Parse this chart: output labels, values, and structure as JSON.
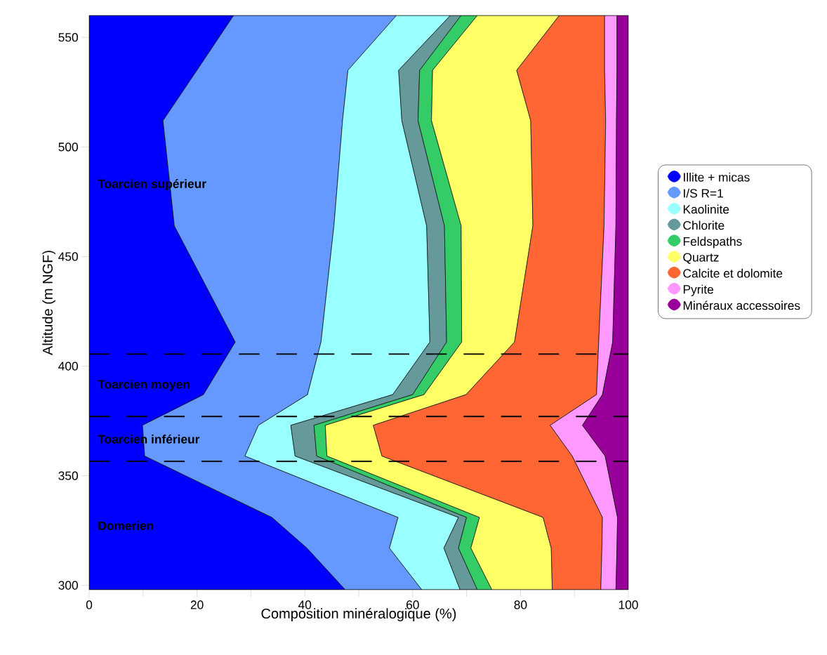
{
  "chart_data": {
    "type": "area",
    "stacked": true,
    "orientation": "horizontal",
    "xlabel": "Composition minéralogique (%)",
    "ylabel": "Altitude (m NGF)",
    "x": [
      298,
      317,
      331,
      359,
      373,
      387,
      411,
      464,
      512,
      535,
      560
    ],
    "series": [
      {
        "name": "Illite + micas",
        "color": "#0000ff",
        "values": [
          47.5,
          40.4,
          33.9,
          10.3,
          9.9,
          21.2,
          27.1,
          15.8,
          13.7,
          20.0,
          26.8
        ]
      },
      {
        "name": "I/S R=1",
        "color": "#6699ff",
        "values": [
          14.2,
          15.3,
          23.4,
          18.6,
          21.5,
          19.3,
          15.9,
          29.6,
          33.3,
          28.0,
          30.2
        ]
      },
      {
        "name": "Kaolinite",
        "color": "#99ffff",
        "values": [
          7.1,
          10.1,
          11.2,
          9.3,
          6.0,
          15.8,
          20.2,
          17.2,
          11.0,
          9.4,
          10.0
        ]
      },
      {
        "name": "Chlorite",
        "color": "#669999",
        "values": [
          3.2,
          2.7,
          1.5,
          4.0,
          4.3,
          3.7,
          3.1,
          3.3,
          3.0,
          3.9,
          2.0
        ]
      },
      {
        "name": "Feldspaths",
        "color": "#33cc66",
        "values": [
          2.7,
          2.3,
          2.4,
          1.9,
          2.1,
          2.1,
          2.8,
          3.1,
          2.5,
          2.4,
          3.0
        ]
      },
      {
        "name": "Quartz",
        "color": "#ffff66",
        "values": [
          11.2,
          14.9,
          11.8,
          10.2,
          8.9,
          7.8,
          9.8,
          13.3,
          18.4,
          15.6,
          15.2
        ]
      },
      {
        "name": "Calcite et dolomite",
        "color": "#ff6633",
        "values": [
          9.0,
          9.4,
          11.0,
          35.3,
          32.8,
          24.2,
          15.6,
          13.2,
          13.9,
          16.3,
          8.4
        ]
      },
      {
        "name": "Pyrite",
        "color": "#ff99ff",
        "values": [
          2.8,
          2.8,
          2.8,
          6.1,
          6.0,
          1.1,
          2.6,
          2.2,
          2.0,
          2.3,
          2.3
        ]
      },
      {
        "name": "Minéraux accessoires",
        "color": "#990099",
        "values": [
          2.3,
          2.1,
          2.0,
          4.3,
          8.5,
          4.8,
          2.9,
          2.3,
          2.2,
          2.1,
          2.1
        ]
      }
    ],
    "xlim": [
      0,
      100
    ],
    "xticks": [
      0,
      {
        "value": 10,
        "label": null
      },
      20,
      {
        "value": 30,
        "label": null
      },
      40,
      {
        "value": 50,
        "label": null
      },
      60,
      {
        "value": 70,
        "label": null
      },
      80,
      {
        "value": 90,
        "label": null
      },
      100
    ],
    "ylim": [
      298,
      560
    ],
    "yticks": [
      300,
      350,
      400,
      450,
      500,
      550
    ],
    "ref_lines": [
      {
        "axis": "y",
        "value": 405.5,
        "color": "#000000",
        "line_style": "dashed"
      },
      {
        "axis": "y",
        "value": 377,
        "color": "#000000",
        "line_style": "dashed"
      },
      {
        "axis": "y",
        "value": 356.5,
        "color": "#000000",
        "line_style": "dashed"
      }
    ],
    "annotations": [
      "Toarcien supérieur",
      "Toarcien moyen",
      "Toarcien inférieur",
      "Domerien"
    ],
    "legend": "right",
    "grid": false
  }
}
